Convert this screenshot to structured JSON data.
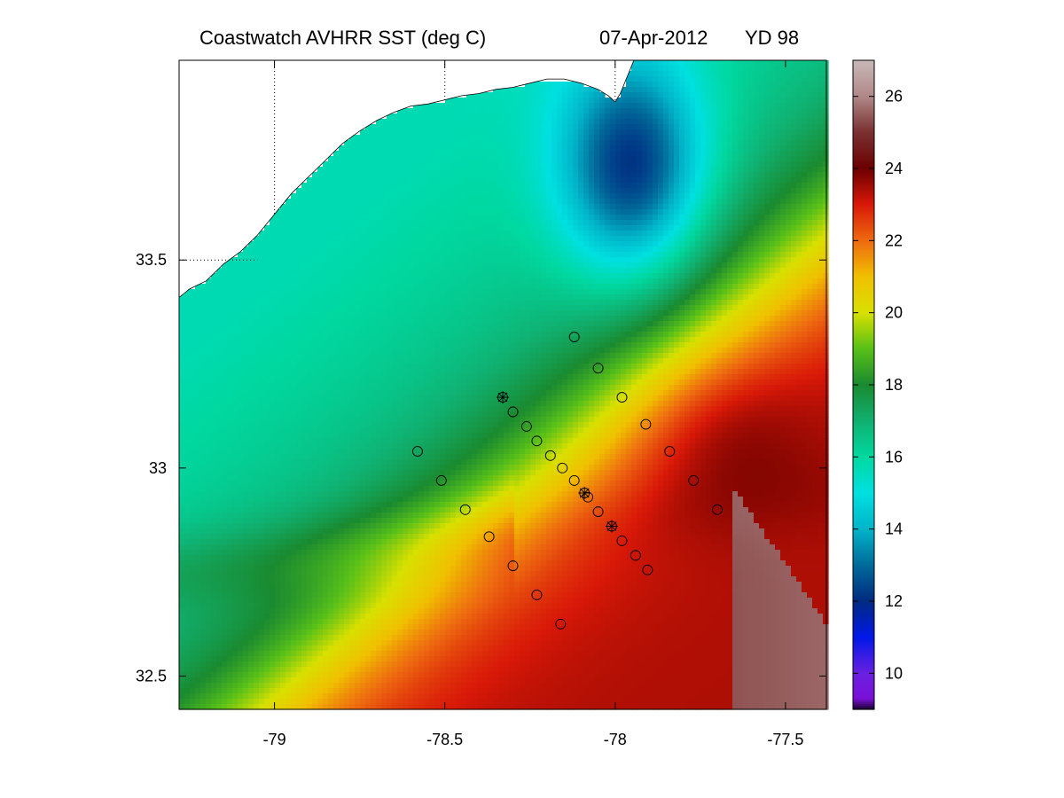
{
  "title": {
    "left": "Coastwatch   AVHRR   SST  (deg C)",
    "date": "07-Apr-2012",
    "yearday": "YD 98"
  },
  "map": {
    "x_axis": {
      "range": [
        -79.28,
        -77.38
      ],
      "ticks": [
        -79,
        -78.5,
        -78,
        -77.5
      ],
      "tick_labels": [
        "-79",
        "-78.5",
        "-78",
        "-77.5"
      ]
    },
    "y_axis": {
      "range": [
        32.42,
        33.98
      ],
      "ticks": [
        32.5,
        33,
        33.5
      ],
      "tick_labels": [
        "32.5",
        "33",
        "33.5"
      ]
    },
    "gridlines": {
      "lon": [
        -79,
        -78.5,
        -78
      ],
      "lat": [
        33.5
      ],
      "style": "dotted, over land only"
    }
  },
  "colorbar": {
    "range": [
      9,
      27
    ],
    "ticks": [
      10,
      12,
      14,
      16,
      18,
      20,
      22,
      24,
      26
    ],
    "tick_labels": [
      "10",
      "12",
      "14",
      "16",
      "18",
      "20",
      "22",
      "24",
      "26"
    ],
    "colormap": [
      [
        9.0,
        "#1a0030"
      ],
      [
        9.3,
        "#7a10d8"
      ],
      [
        10.0,
        "#6a20e0"
      ],
      [
        11.0,
        "#0018e8"
      ],
      [
        12.0,
        "#002a80"
      ],
      [
        13.0,
        "#006a9a"
      ],
      [
        14.0,
        "#00b4c8"
      ],
      [
        15.0,
        "#00e0e0"
      ],
      [
        16.0,
        "#00d8a0"
      ],
      [
        17.0,
        "#10b070"
      ],
      [
        18.0,
        "#1a8a30"
      ],
      [
        19.0,
        "#58c018"
      ],
      [
        20.0,
        "#d8e000"
      ],
      [
        21.0,
        "#f0c000"
      ],
      [
        22.0,
        "#ee6a10"
      ],
      [
        23.0,
        "#d81808"
      ],
      [
        24.0,
        "#6c0000"
      ],
      [
        25.0,
        "#7a3030"
      ],
      [
        26.0,
        "#b08888"
      ],
      [
        27.0,
        "#c8b8b8"
      ]
    ]
  },
  "stations": [
    {
      "lon": -78.33,
      "lat": 33.17,
      "star": true
    },
    {
      "lon": -78.3,
      "lat": 33.135
    },
    {
      "lon": -78.26,
      "lat": 33.1
    },
    {
      "lon": -78.23,
      "lat": 33.065
    },
    {
      "lon": -78.19,
      "lat": 33.03
    },
    {
      "lon": -78.155,
      "lat": 33.0
    },
    {
      "lon": -78.12,
      "lat": 32.97
    },
    {
      "lon": -78.09,
      "lat": 32.94,
      "star": true
    },
    {
      "lon": -78.08,
      "lat": 32.93
    },
    {
      "lon": -78.05,
      "lat": 32.895
    },
    {
      "lon": -78.01,
      "lat": 32.86,
      "star": true
    },
    {
      "lon": -77.98,
      "lat": 32.825
    },
    {
      "lon": -77.94,
      "lat": 32.79
    },
    {
      "lon": -77.905,
      "lat": 32.755
    },
    {
      "lon": -78.12,
      "lat": 33.315
    },
    {
      "lon": -78.05,
      "lat": 33.24
    },
    {
      "lon": -77.98,
      "lat": 33.17
    },
    {
      "lon": -77.91,
      "lat": 33.105
    },
    {
      "lon": -77.84,
      "lat": 33.04
    },
    {
      "lon": -77.77,
      "lat": 32.97
    },
    {
      "lon": -77.7,
      "lat": 32.9
    },
    {
      "lon": -78.58,
      "lat": 33.04
    },
    {
      "lon": -78.51,
      "lat": 32.97
    },
    {
      "lon": -78.44,
      "lat": 32.9
    },
    {
      "lon": -78.37,
      "lat": 32.835
    },
    {
      "lon": -78.3,
      "lat": 32.765
    },
    {
      "lon": -78.23,
      "lat": 32.695
    },
    {
      "lon": -78.16,
      "lat": 32.625
    }
  ],
  "coastline": [
    [
      -79.28,
      33.41
    ],
    [
      -79.25,
      33.43
    ],
    [
      -79.2,
      33.45
    ],
    [
      -79.15,
      33.49
    ],
    [
      -79.1,
      33.52
    ],
    [
      -79.05,
      33.56
    ],
    [
      -79.0,
      33.61
    ],
    [
      -78.95,
      33.66
    ],
    [
      -78.9,
      33.7
    ],
    [
      -78.85,
      33.74
    ],
    [
      -78.8,
      33.78
    ],
    [
      -78.75,
      33.81
    ],
    [
      -78.7,
      33.835
    ],
    [
      -78.65,
      33.855
    ],
    [
      -78.6,
      33.87
    ],
    [
      -78.55,
      33.875
    ],
    [
      -78.5,
      33.885
    ],
    [
      -78.45,
      33.895
    ],
    [
      -78.4,
      33.9
    ],
    [
      -78.35,
      33.91
    ],
    [
      -78.3,
      33.915
    ],
    [
      -78.25,
      33.925
    ],
    [
      -78.2,
      33.935
    ],
    [
      -78.15,
      33.935
    ],
    [
      -78.1,
      33.925
    ],
    [
      -78.05,
      33.91
    ],
    [
      -78.02,
      33.895
    ],
    [
      -78.0,
      33.88
    ],
    [
      -77.985,
      33.9
    ],
    [
      -77.97,
      33.93
    ],
    [
      -77.955,
      33.96
    ],
    [
      -77.945,
      33.98
    ]
  ]
}
